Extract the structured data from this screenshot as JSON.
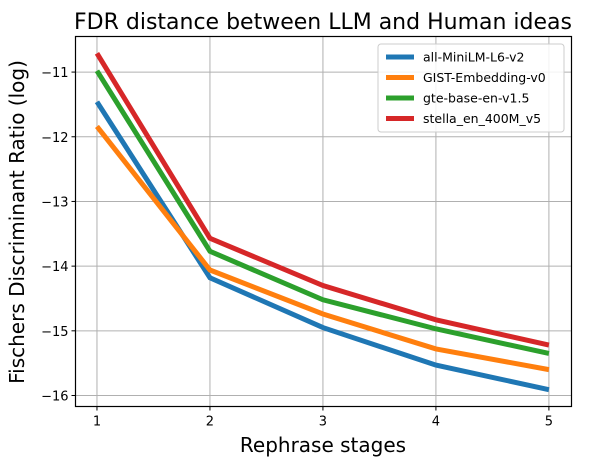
{
  "chart_data": {
    "type": "line",
    "title": "FDR distance between LLM and Human ideas",
    "xlabel": "Rephrase stages",
    "ylabel": "Fischers Discriminant Ratio (log)",
    "x": [
      1,
      2,
      3,
      4,
      5
    ],
    "xlim": [
      0.81,
      5.2
    ],
    "ylim": [
      -16.17,
      -10.45
    ],
    "xticks": [
      1,
      2,
      3,
      4,
      5
    ],
    "yticks": [
      -11,
      -12,
      -13,
      -14,
      -15,
      -16
    ],
    "ytick_labels": [
      "−11",
      "−12",
      "−13",
      "−14",
      "−15",
      "−16"
    ],
    "grid": true,
    "legend_position": "top-right",
    "series": [
      {
        "name": "all-MiniLM-L6-v2",
        "color": "#1f77b4",
        "values": [
          -11.46,
          -14.18,
          -14.95,
          -15.53,
          -15.91
        ]
      },
      {
        "name": "GIST-Embedding-v0",
        "color": "#ff7f0e",
        "values": [
          -11.84,
          -14.06,
          -14.74,
          -15.28,
          -15.6
        ]
      },
      {
        "name": "gte-base-en-v1.5",
        "color": "#2ca02c",
        "values": [
          -10.98,
          -13.77,
          -14.52,
          -14.97,
          -15.35
        ]
      },
      {
        "name": "stella_en_400M_v5",
        "color": "#d62728",
        "values": [
          -10.71,
          -13.57,
          -14.3,
          -14.83,
          -15.22
        ]
      }
    ]
  }
}
